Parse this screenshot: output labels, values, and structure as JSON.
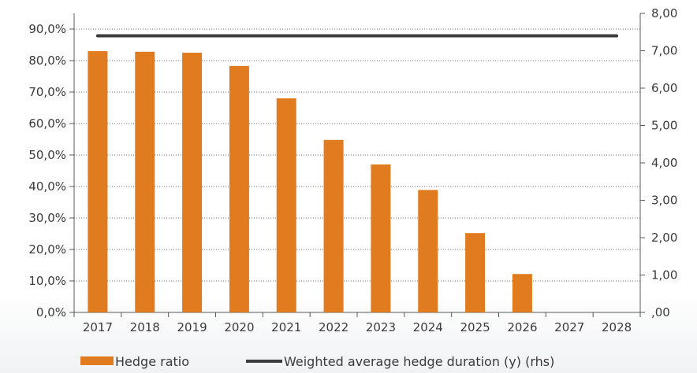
{
  "chart_data": {
    "type": "bar",
    "categories": [
      "2017",
      "2018",
      "2019",
      "2020",
      "2021",
      "2022",
      "2023",
      "2024",
      "2025",
      "2026",
      "2027",
      "2028"
    ],
    "series": [
      {
        "name": "Hedge ratio",
        "type": "bar",
        "axis": "left",
        "color": "#e07b1f",
        "values": [
          0.83,
          0.828,
          0.825,
          0.783,
          0.68,
          0.548,
          0.47,
          0.389,
          0.252,
          0.122,
          0,
          0
        ]
      },
      {
        "name": "Weighted average hedge duration (y) (rhs)",
        "type": "line",
        "axis": "right",
        "color": "#3c3c3c",
        "values": [
          7.4,
          7.4,
          7.4,
          7.4,
          7.4,
          7.4,
          7.4,
          7.4,
          7.4,
          7.4,
          7.4,
          7.4
        ]
      }
    ],
    "y_left": {
      "ylim": [
        0,
        0.9
      ],
      "ticks": [
        {
          "value": 0.0,
          "label": "0,0%"
        },
        {
          "value": 0.1,
          "label": "10,0%"
        },
        {
          "value": 0.2,
          "label": "20,0%"
        },
        {
          "value": 0.3,
          "label": "30,0%"
        },
        {
          "value": 0.4,
          "label": "40,0%"
        },
        {
          "value": 0.5,
          "label": "50,0%"
        },
        {
          "value": 0.6,
          "label": "60,0%"
        },
        {
          "value": 0.7,
          "label": "70,0%"
        },
        {
          "value": 0.8,
          "label": "80,0%"
        },
        {
          "value": 0.9,
          "label": "90,0%"
        }
      ]
    },
    "y_right": {
      "ylim": [
        0,
        8
      ],
      "ticks": [
        {
          "value": 0,
          "label": ",00"
        },
        {
          "value": 1,
          "label": "1,00"
        },
        {
          "value": 2,
          "label": "2,00"
        },
        {
          "value": 3,
          "label": "3,00"
        },
        {
          "value": 4,
          "label": "4,00"
        },
        {
          "value": 5,
          "label": "5,00"
        },
        {
          "value": 6,
          "label": "6,00"
        },
        {
          "value": 7,
          "label": "7,00"
        },
        {
          "value": 8,
          "label": "8,00"
        }
      ]
    },
    "grid": "dotted-horizontal",
    "legend_position": "bottom-left",
    "title": "",
    "xlabel": "",
    "ylabel": ""
  }
}
